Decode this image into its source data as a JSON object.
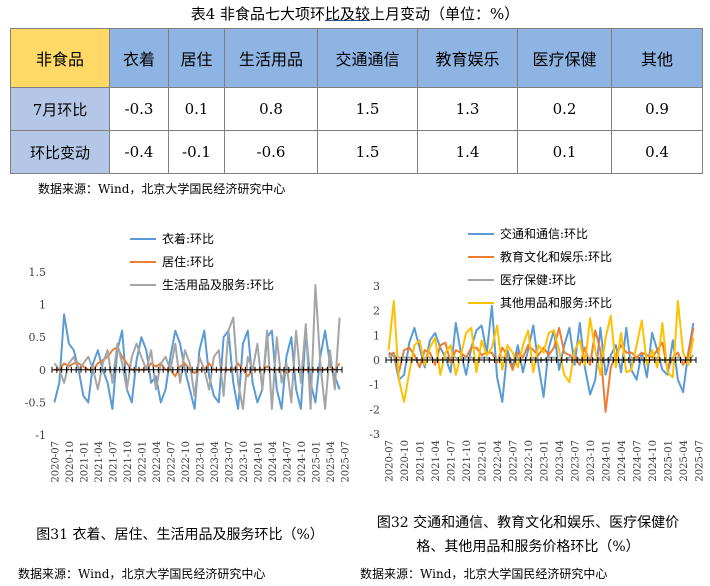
{
  "table_title": {
    "pre": "表4 非食品七大项环",
    "ul": "比及较",
    "post": "上月变动（单位：%）"
  },
  "table": {
    "corner": "非食品",
    "headers": [
      "衣着",
      "居住",
      "生活用品",
      "交通通信",
      "教育娱乐",
      "医疗保健",
      "其他"
    ],
    "rows": [
      {
        "label": "7月环比",
        "values": [
          "-0.3",
          "0.1",
          "0.8",
          "1.5",
          "1.3",
          "0.2",
          "0.9"
        ]
      },
      {
        "label": "环比变动",
        "values": [
          "-0.4",
          "-0.1",
          "-0.6",
          "1.5",
          "1.4",
          "0.1",
          "0.4"
        ]
      }
    ]
  },
  "source_top": "数据来源：Wind，北京大学国民经济研究中心",
  "source_left": "数据来源：Wind，北京大学国民经济研究中心",
  "source_right": "数据来源：Wind，北京大学国民经济研究中心",
  "caption_left": "图31 衣着、居住、生活用品及服务环比（%）",
  "caption_right_line1": "图32 交通和通信、教育文化和娱乐、医疗保健价",
  "caption_right_line2": "格、其他用品和服务价格环比（%）",
  "chart_data": [
    {
      "type": "line",
      "title": "",
      "xlabel": "",
      "ylabel": "",
      "x_start": "2020-07",
      "x_tick_labels": [
        "2020-07",
        "2020-10",
        "2021-01",
        "2021-04",
        "2021-07",
        "2021-10",
        "2022-01",
        "2022-04",
        "2022-07",
        "2022-10",
        "2023-01",
        "2023-04",
        "2023-07",
        "2023-10",
        "2024-01",
        "2024-04",
        "2024-07",
        "2024-10",
        "2025-01",
        "2025-04",
        "2025-07"
      ],
      "ylim": [
        -1,
        1.5
      ],
      "yticks": [
        "-1",
        "-0.5",
        "0",
        "0.5",
        "1",
        "1.5"
      ],
      "legend_position": "top-right",
      "grid": false,
      "series": [
        {
          "name": "衣着:环比",
          "color": "#5b9bd5",
          "values": [
            -0.5,
            -0.2,
            0.85,
            0.4,
            0.3,
            0,
            -0.4,
            -0.5,
            0.1,
            0.3,
            0,
            -0.2,
            -0.6,
            0.3,
            0.6,
            -0.3,
            -0.5,
            0.15,
            0.5,
            0.3,
            -0.2,
            -0.1,
            -0.5,
            -0.3,
            0.2,
            0.6,
            0.4,
            0,
            -0.3,
            -0.6,
            0.3,
            0.6,
            -0.1,
            -0.4,
            -0.5,
            0.5,
            0.6,
            -0.2,
            -0.6,
            0.4,
            0.6,
            -0.2,
            -0.5,
            -0.3,
            0.5,
            0.6,
            -0.3,
            -0.6,
            0.2,
            0.5,
            -0.3,
            -0.6,
            0.6,
            -0.2,
            -0.5,
            0.2,
            0.6,
            0.1,
            -0.1,
            -0.3
          ]
        },
        {
          "name": "居住:环比",
          "color": "#ed7d31",
          "values": [
            0,
            0,
            0.1,
            0.05,
            0.1,
            0.1,
            0.05,
            0,
            0,
            0.1,
            0.15,
            0.2,
            0.3,
            0.35,
            0.2,
            0.1,
            0,
            0,
            0,
            0,
            0.1,
            0.05,
            0.1,
            0,
            0,
            -0.1,
            0.05,
            0.1,
            0,
            -0.05,
            0,
            0,
            0.1,
            0,
            0,
            0,
            0,
            0,
            0.1,
            0,
            -0.1,
            0,
            0,
            0,
            0.05,
            0,
            0,
            0,
            -0.05,
            0,
            0,
            0,
            0,
            0,
            0,
            0,
            0,
            0.05,
            0,
            0.1
          ]
        },
        {
          "name": "生活用品及服务:环比",
          "color": "#a5a5a5",
          "values": [
            0.1,
            0,
            -0.2,
            0.1,
            0.2,
            0,
            0.1,
            0.2,
            0,
            -0.3,
            0.1,
            0.3,
            -0.2,
            0.4,
            0.1,
            -0.3,
            0.2,
            0.4,
            0.2,
            0,
            0.3,
            -0.3,
            0.1,
            0.2,
            0,
            0.4,
            -0.2,
            0.3,
            0.1,
            -0.4,
            0.2,
            0,
            -0.3,
            0.2,
            0.3,
            -0.4,
            0.6,
            0.8,
            -0.2,
            -0.6,
            0.2,
            0,
            0.4,
            -0.3,
            0.6,
            -0.6,
            0.5,
            -0.2,
            0.1,
            -0.5,
            0.6,
            -0.2,
            0.7,
            -0.6,
            1.3,
            0.1,
            -0.6,
            0.3,
            -0.3,
            0.8
          ]
        }
      ]
    },
    {
      "type": "line",
      "title": "",
      "xlabel": "",
      "ylabel": "",
      "x_start": "2020-07",
      "x_tick_labels": [
        "2020-07",
        "2020-10",
        "2021-01",
        "2021-04",
        "2021-07",
        "2021-10",
        "2022-01",
        "2022-04",
        "2022-07",
        "2022-10",
        "2023-01",
        "2023-04",
        "2023-07",
        "2023-10",
        "2024-01",
        "2024-04",
        "2024-07",
        "2024-10",
        "2025-01",
        "2025-04",
        "2025-07"
      ],
      "ylim": [
        -3,
        3
      ],
      "yticks": [
        "-3",
        "-2",
        "-1",
        "0",
        "1",
        "2",
        "3"
      ],
      "legend_position": "top-right",
      "grid": false,
      "series": [
        {
          "name": "交通和通信:环比",
          "color": "#5b9bd5",
          "values": [
            0.3,
            0.2,
            -0.8,
            -0.6,
            0.7,
            1.3,
            0.5,
            -0.3,
            0.8,
            1.1,
            0.5,
            0.1,
            -0.5,
            1.5,
            0.3,
            -0.6,
            0.5,
            1.2,
            1.4,
            0.3,
            2.2,
            -0.7,
            -1.7,
            0.4,
            -0.3,
            0.6,
            -0.5,
            0.4,
            1.4,
            -0.2,
            -1.5,
            0.5,
            1.2,
            -0.4,
            0.6,
            1.3,
            -0.2,
            1.5,
            -0.3,
            -1.4,
            -0.8,
            1.3,
            -0.6,
            0.2,
            0.6,
            -0.5,
            1.3,
            -0.4,
            -0.8,
            0.3,
            -0.7,
            1.1,
            0.4,
            -0.4,
            -0.6,
            0.8,
            -0.8,
            -1.3,
            0.3,
            1.5
          ]
        },
        {
          "name": "教育文化和娱乐:环比",
          "color": "#ed7d31",
          "values": [
            0.2,
            0.3,
            -0.5,
            0.4,
            0.5,
            0.2,
            -0.3,
            0.4,
            0.3,
            -0.2,
            0.6,
            0.7,
            -0.1,
            0.4,
            0.3,
            0.1,
            0.5,
            0.5,
            0.2,
            0.3,
            0.3,
            -0.1,
            0.5,
            0.2,
            -0.4,
            0.3,
            0.1,
            0.6,
            0.4,
            0.2,
            0.5,
            0.2,
            0.5,
            1.3,
            0.3,
            0.2,
            0.1,
            -0.2,
            0.5,
            -0.2,
            1.2,
            0.4,
            -2.1,
            -0.3,
            0.2,
            0.6,
            0.3,
            0.3,
            0.1,
            0.3,
            0.2,
            0.1,
            0.4,
            0.7,
            -0.4,
            0.1,
            0.3,
            -0.2,
            0.2,
            1.3
          ]
        },
        {
          "name": "医疗保健:环比",
          "color": "#a5a5a5",
          "values": [
            0.1,
            0.2,
            0.1,
            0.1,
            0.1,
            0,
            0,
            0.1,
            0.1,
            0,
            0,
            0.1,
            0.1,
            0.1,
            0,
            0.1,
            0.1,
            0,
            0.1,
            0.1,
            0,
            0,
            0.1,
            0.1,
            0,
            0.1,
            0,
            0,
            0.1,
            0,
            0,
            0.1,
            0.1,
            0,
            0,
            0.1,
            0.2,
            0,
            0,
            0.1,
            0,
            0.1,
            0,
            0.1,
            0.1,
            0,
            0,
            0.1,
            0,
            0.1,
            0,
            0,
            0.1,
            0,
            0,
            0.1,
            0.1,
            0,
            0,
            0.2
          ]
        },
        {
          "name": "其他用品和服务:环比",
          "color": "#ffc000",
          "values": [
            0.4,
            2.4,
            -0.8,
            -1.7,
            -0.5,
            0.6,
            0.8,
            -0.2,
            0.5,
            0.9,
            -0.6,
            0.3,
            0.6,
            -0.6,
            0.2,
            1.1,
            1.3,
            -0.5,
            0.8,
            0.2,
            0.5,
            1.4,
            -0.4,
            0.6,
            0.3,
            -0.3,
            0.6,
            1.2,
            -0.5,
            0.6,
            0.3,
            1.1,
            1.2,
            0.4,
            -0.6,
            -0.9,
            0.4,
            0.8,
            -0.2,
            1.7,
            0.4,
            -0.6,
            0.9,
            1.8,
            -0.3,
            1.1,
            -0.5,
            -0.4,
            0.6,
            1.6,
            -0.2,
            0.4,
            -0.3,
            1.5,
            -0.5,
            -0.7,
            2.4,
            0.3,
            -0.2,
            0.9
          ]
        }
      ]
    }
  ]
}
